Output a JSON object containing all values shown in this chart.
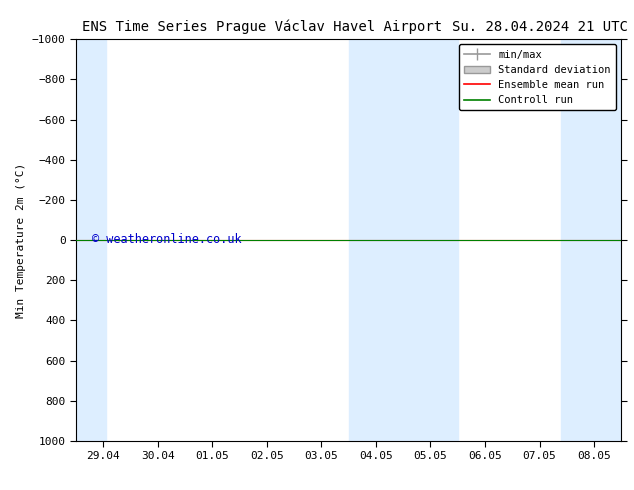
{
  "title_left": "ENS Time Series Prague Václav Havel Airport",
  "title_right": "Su. 28.04.2024 21 UTC",
  "ylabel": "Min Temperature 2m (°C)",
  "watermark": "© weatheronline.co.uk",
  "xlim_start": -0.5,
  "xlim_end": 9.5,
  "ylim_bottom": 1000,
  "ylim_top": -1000,
  "yticks": [
    -1000,
    -800,
    -600,
    -400,
    -200,
    0,
    200,
    400,
    600,
    800,
    1000
  ],
  "xtick_labels": [
    "29.04",
    "30.04",
    "01.05",
    "02.05",
    "03.05",
    "04.05",
    "05.05",
    "06.05",
    "07.05",
    "08.05"
  ],
  "xtick_positions": [
    0,
    1,
    2,
    3,
    4,
    5,
    6,
    7,
    8,
    9
  ],
  "shaded_bands": [
    {
      "x_start": -0.5,
      "x_end": 0.05,
      "color": "#ddeeff"
    },
    {
      "x_start": 4.5,
      "x_end": 6.5,
      "color": "#ddeeff"
    },
    {
      "x_start": 8.4,
      "x_end": 9.5,
      "color": "#ddeeff"
    }
  ],
  "green_line_y": 0,
  "green_line_color": "#008000",
  "red_line_y": 0,
  "red_line_color": "#FF0000",
  "legend_items": [
    {
      "label": "min/max",
      "color": "#aaaaaa",
      "type": "errorbar"
    },
    {
      "label": "Standard deviation",
      "color": "#cccccc",
      "type": "band"
    },
    {
      "label": "Ensemble mean run",
      "color": "#FF0000",
      "type": "line"
    },
    {
      "label": "Controll run",
      "color": "#008000",
      "type": "line"
    }
  ],
  "bg_color": "#ffffff",
  "plot_bg_color": "#ffffff",
  "border_color": "#000000",
  "font_size": 8,
  "title_font_size": 10
}
